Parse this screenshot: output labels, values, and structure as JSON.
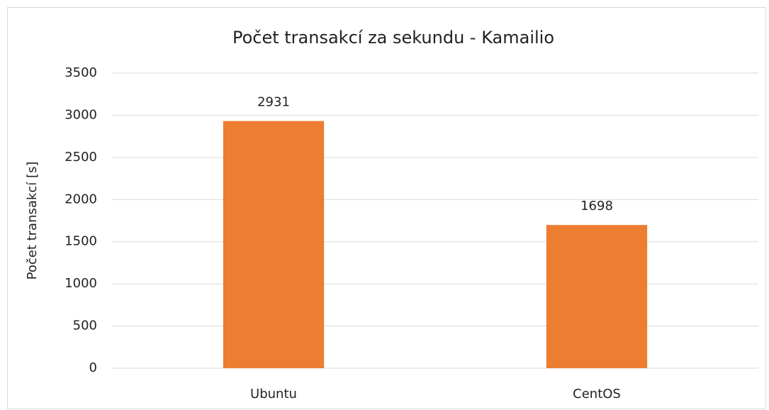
{
  "chart_data": {
    "type": "bar",
    "title": "Počet transakcí za sekundu - Kamailio",
    "y_label": "Počet transakcí [s]",
    "categories": [
      "Ubuntu",
      "CentOS"
    ],
    "values": [
      2931,
      1698
    ],
    "color": "#ed7d31",
    "ylim": [
      0,
      3500
    ],
    "yticks": [
      0,
      500,
      1000,
      1500,
      2000,
      2500,
      3000,
      3500
    ],
    "grid": true,
    "data_labels": true
  }
}
